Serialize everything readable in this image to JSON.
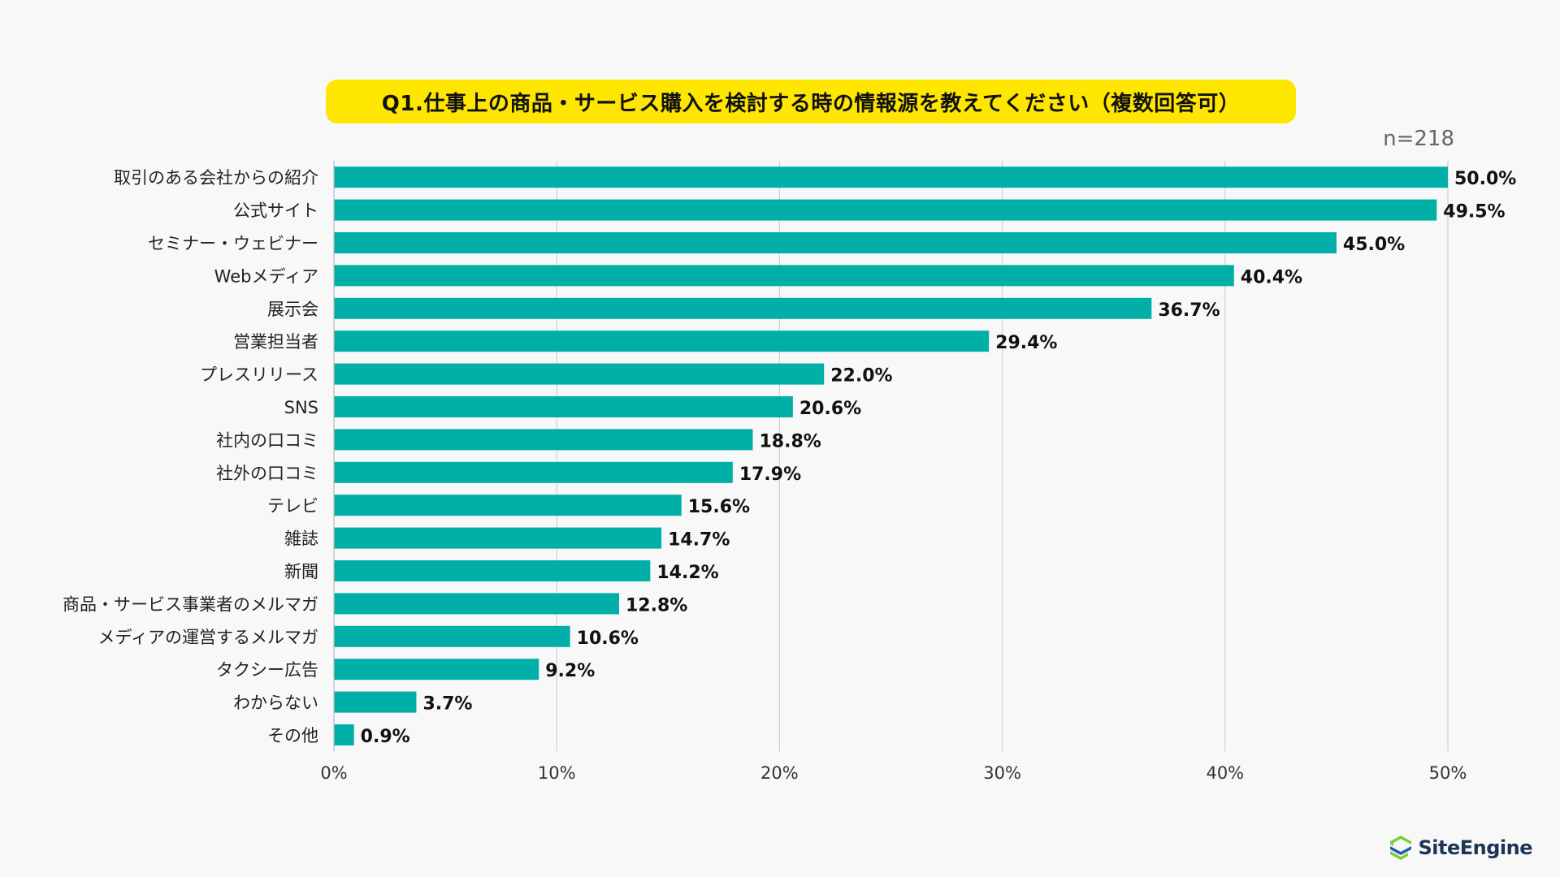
{
  "title": "Q1.仕事上の商品・サービス購入を検討する時の情報源を教えてください（複数回答可）",
  "sample_size": "n=218",
  "brand": {
    "name": "SiteEngine",
    "logo_icon": "site-engine-s-logo-icon",
    "colors": {
      "green": "#7ccf3c",
      "blue": "#1e5fa8"
    }
  },
  "colors": {
    "bar": "#00b0a8",
    "title_bg": "#ffe600",
    "grid": "#d0d0d0",
    "background": "#f8f8f8"
  },
  "chart_data": {
    "type": "bar",
    "orientation": "horizontal",
    "categories": [
      "取引のある会社からの紹介",
      "公式サイト",
      "セミナー・ウェビナー",
      "Webメディア",
      "展示会",
      "営業担当者",
      "プレスリリース",
      "SNS",
      "社内の口コミ",
      "社外の口コミ",
      "テレビ",
      "雑誌",
      "新聞",
      "商品・サービス事業者のメルマガ",
      "メディアの運営するメルマガ",
      "タクシー広告",
      "わからない",
      "その他"
    ],
    "values": [
      50.0,
      49.5,
      45.0,
      40.4,
      36.7,
      29.4,
      22.0,
      20.6,
      18.8,
      17.9,
      15.6,
      14.7,
      14.2,
      12.8,
      10.6,
      9.2,
      3.7,
      0.9
    ],
    "value_labels": [
      "50.0%",
      "49.5%",
      "45.0%",
      "40.4%",
      "36.7%",
      "29.4%",
      "22.0%",
      "20.6%",
      "18.8%",
      "17.9%",
      "15.6%",
      "14.7%",
      "14.2%",
      "12.8%",
      "10.6%",
      "9.2%",
      "3.7%",
      "0.9%"
    ],
    "x_ticks": [
      0,
      10,
      20,
      30,
      40,
      50
    ],
    "x_tick_labels": [
      "0%",
      "10%",
      "20%",
      "30%",
      "40%",
      "50%"
    ],
    "xlim": [
      0,
      50
    ],
    "grid": true,
    "legend": "none"
  }
}
